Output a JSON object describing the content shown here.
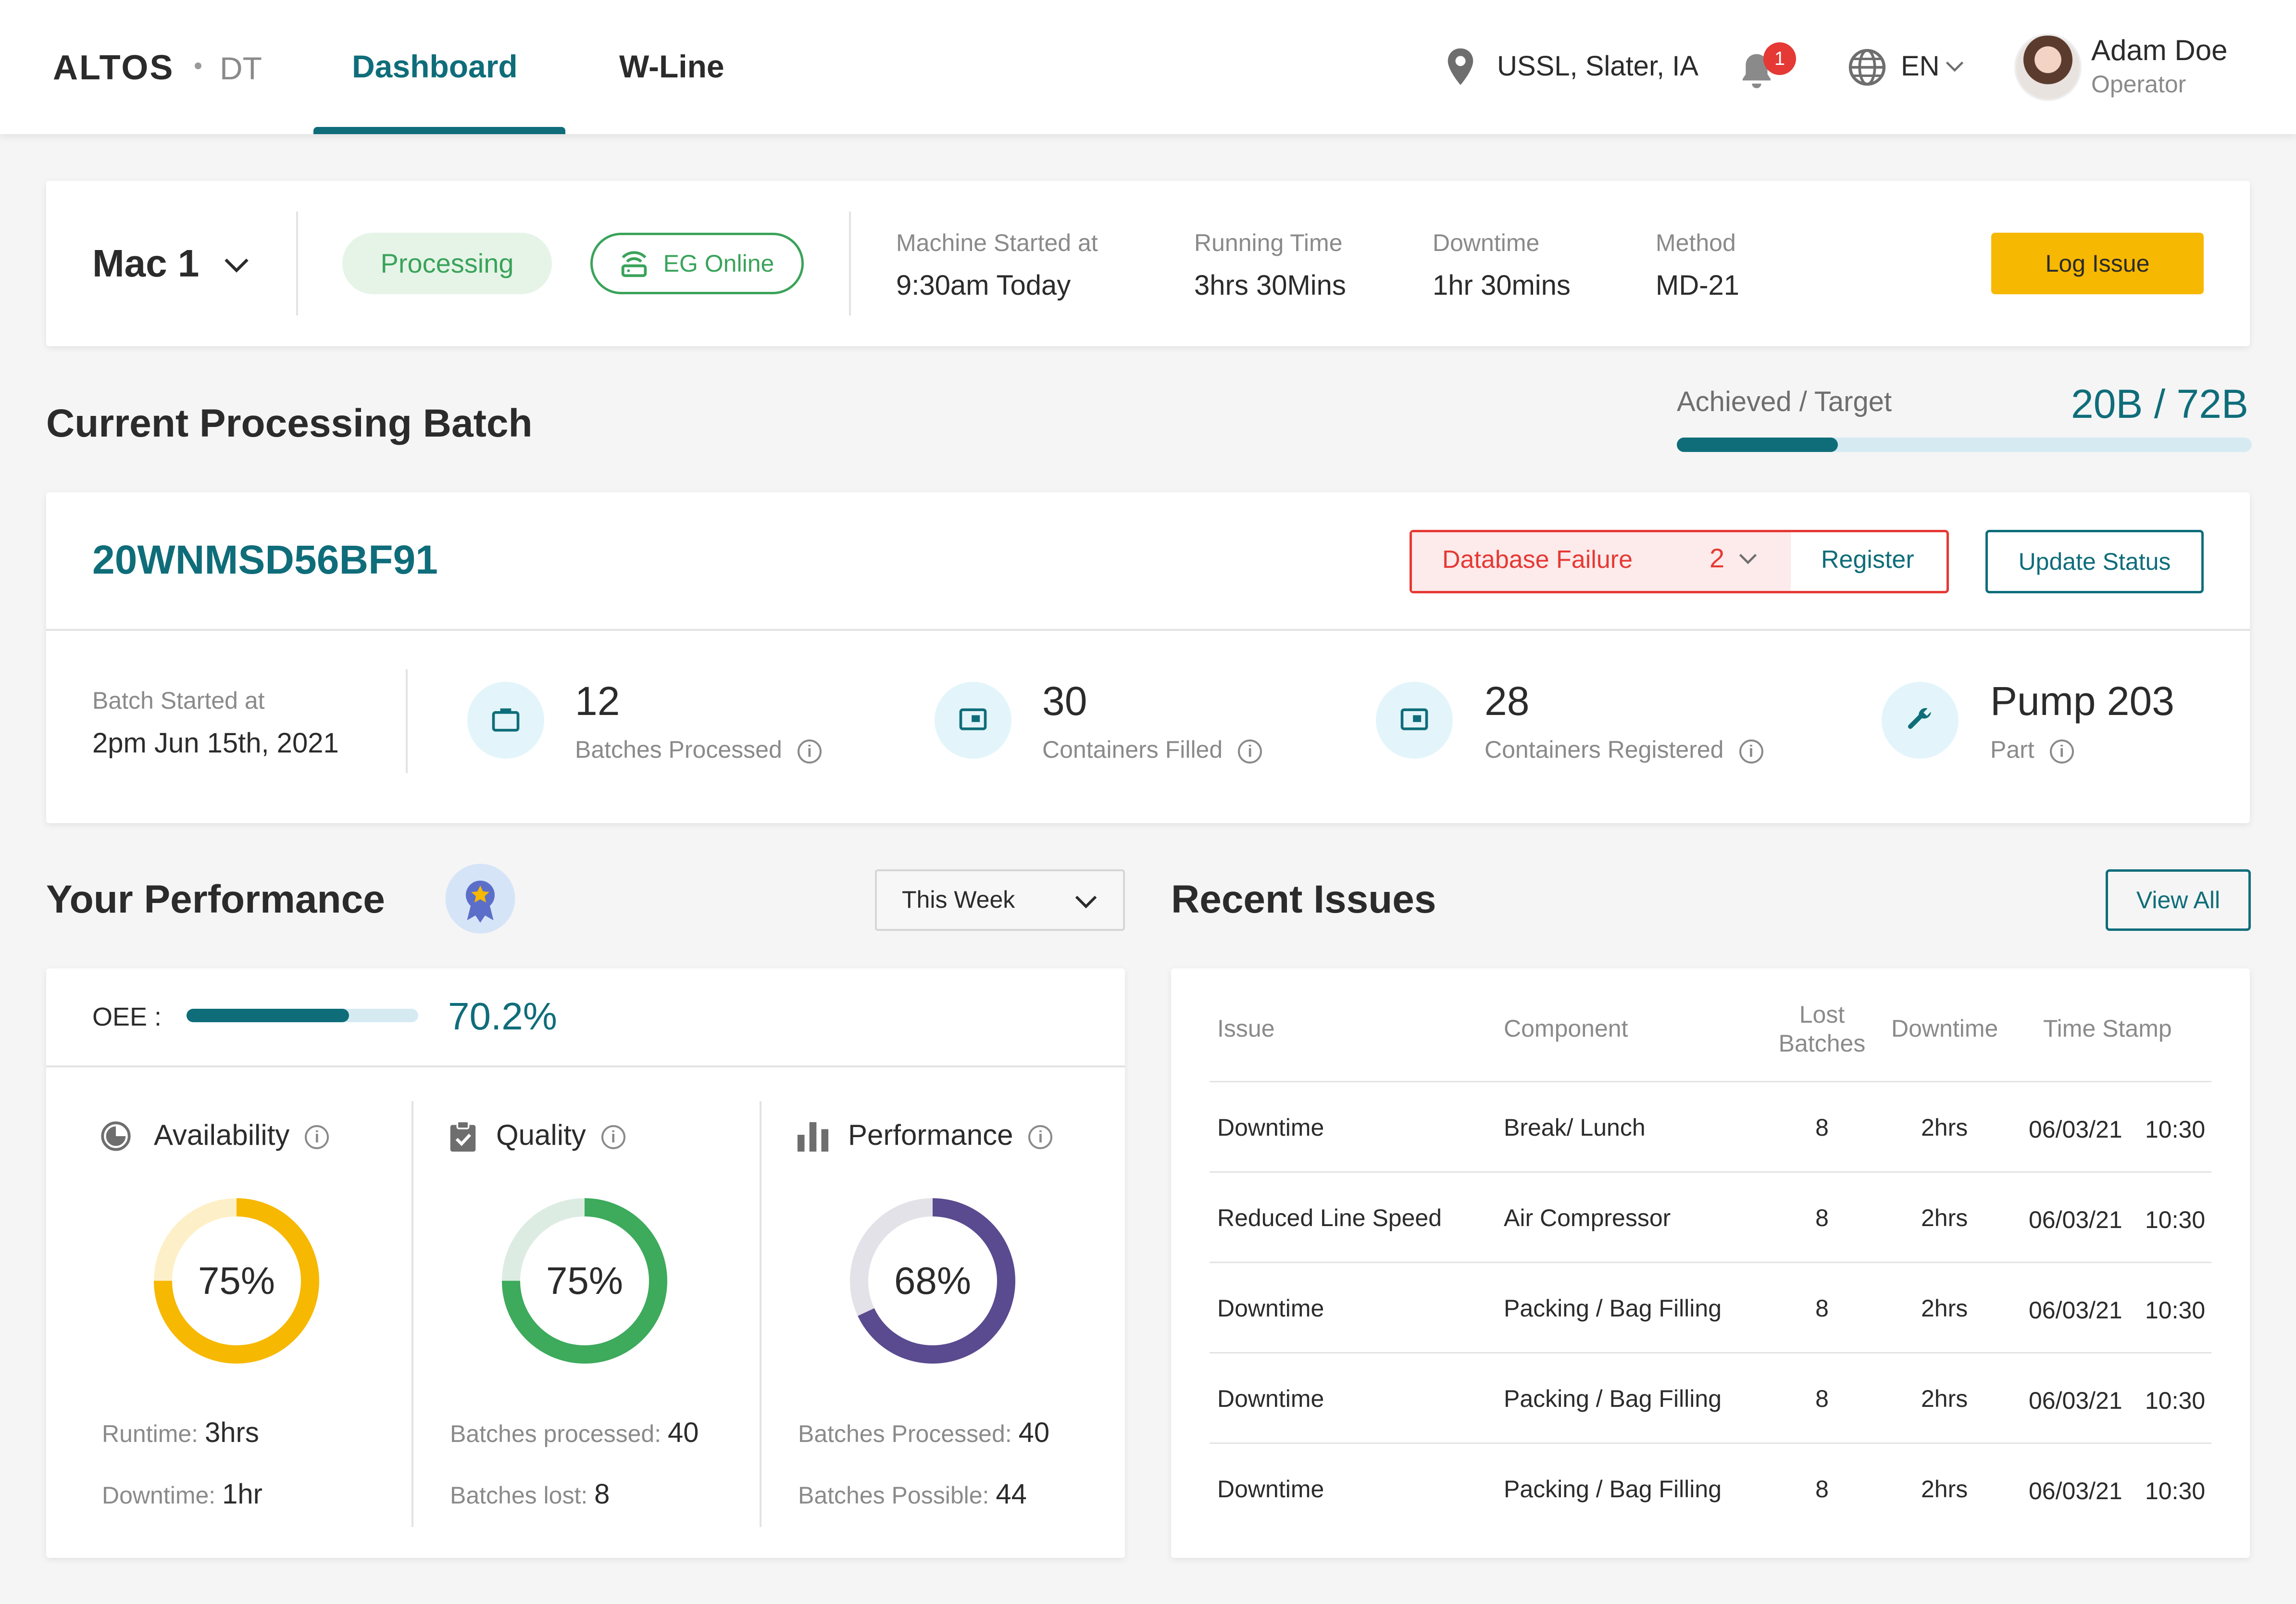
{
  "header": {
    "logo": "ALTOS",
    "logo_sub": "DT",
    "tabs": [
      {
        "label": "Dashboard",
        "active": true
      },
      {
        "label": "W-Line",
        "active": false
      }
    ],
    "location": "USSL, Slater, IA",
    "notification_count": "1",
    "language": "EN",
    "user": {
      "name": "Adam Doe",
      "role": "Operator"
    }
  },
  "machine": {
    "name": "Mac 1",
    "status": "Processing",
    "connection": "EG Online",
    "started_label": "Machine Started at",
    "started_value": "9:30am Today",
    "running_label": "Running Time",
    "running_value": "3hrs 30Mins",
    "downtime_label": "Downtime",
    "downtime_value": "1hr 30mins",
    "method_label": "Method",
    "method_value": "MD-21",
    "log_issue": "Log Issue"
  },
  "batch": {
    "section_title": "Current Processing Batch",
    "achieved_label": "Achieved / Target",
    "achieved_value": "20B / 72B",
    "achieved_fraction": 0.28,
    "id": "20WNMSD56BF91",
    "failure_label": "Database Failure",
    "failure_count": "2",
    "register": "Register",
    "update_status": "Update Status",
    "started_label": "Batch Started at",
    "started_value": "2pm Jun 15th, 2021",
    "stats": [
      {
        "value": "12",
        "label": "Batches Processed",
        "icon": "briefcase-icon"
      },
      {
        "value": "30",
        "label": "Containers Filled",
        "icon": "container-icon"
      },
      {
        "value": "28",
        "label": "Containers Registered",
        "icon": "container-icon"
      },
      {
        "value": "Pump 203",
        "label": "Part",
        "icon": "wrench-icon"
      }
    ]
  },
  "performance": {
    "title": "Your Performance",
    "period": "This Week",
    "oee_label": "OEE :",
    "oee_value": "70.2%",
    "oee_fraction": 0.702,
    "metrics": [
      {
        "name": "Availability",
        "percent_label": "75%",
        "percent": 0.75,
        "color": "#f6b800",
        "track": "#fdf0c8",
        "line1_label": "Runtime:",
        "line1_value": "3hrs",
        "line2_label": "Downtime:",
        "line2_value": "1hr"
      },
      {
        "name": "Quality",
        "percent_label": "75%",
        "percent": 0.75,
        "color": "#3daa5c",
        "track": "#dcece3",
        "line1_label": "Batches processed:",
        "line1_value": "40",
        "line2_label": "Batches lost:",
        "line2_value": "8"
      },
      {
        "name": "Performance",
        "percent_label": "68%",
        "percent": 0.68,
        "color": "#5a4a8f",
        "track": "#e2e2e8",
        "line1_label": "Batches Processed:",
        "line1_value": "40",
        "line2_label": "Batches Possible:",
        "line2_value": "44"
      }
    ]
  },
  "issues": {
    "title": "Recent Issues",
    "view_all": "View All",
    "columns": [
      "Issue",
      "Component",
      "Lost",
      "Batches",
      "Downtime",
      "Time Stamp"
    ],
    "rows": [
      {
        "issue": "Downtime",
        "component": "Break/ Lunch",
        "lost": "8",
        "downtime": "2hrs",
        "date": "06/03/21",
        "time": "10:30"
      },
      {
        "issue": "Reduced Line Speed",
        "component": "Air Compressor",
        "lost": "8",
        "downtime": "2hrs",
        "date": "06/03/21",
        "time": "10:30"
      },
      {
        "issue": "Downtime",
        "component": "Packing / Bag Filling",
        "lost": "8",
        "downtime": "2hrs",
        "date": "06/03/21",
        "time": "10:30"
      },
      {
        "issue": "Downtime",
        "component": "Packing / Bag Filling",
        "lost": "8",
        "downtime": "2hrs",
        "date": "06/03/21",
        "time": "10:30"
      },
      {
        "issue": "Downtime",
        "component": "Packing / Bag Filling",
        "lost": "8",
        "downtime": "2hrs",
        "date": "06/03/21",
        "time": "10:30"
      }
    ]
  }
}
